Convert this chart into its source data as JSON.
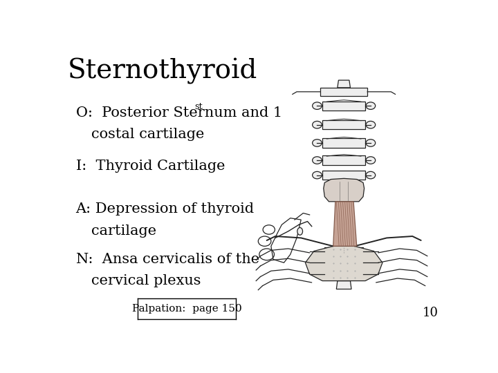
{
  "title": "Sternothyroid",
  "title_fontsize": 28,
  "title_font": "DejaVu Serif",
  "bg_color": "#ffffff",
  "text_color": "#000000",
  "body_fontsize": 15,
  "body_font": "DejaVu Serif",
  "footnote": "Palpation:  page 150",
  "page_number": "10",
  "outline_color": "#222222",
  "bone_fill": "#eeeeee",
  "thyroid_fill": "#d8cfc8",
  "sternum_fill": "#ddd8d0",
  "muscle_fill": "#c0998a",
  "muscle_line": "#7a5040"
}
